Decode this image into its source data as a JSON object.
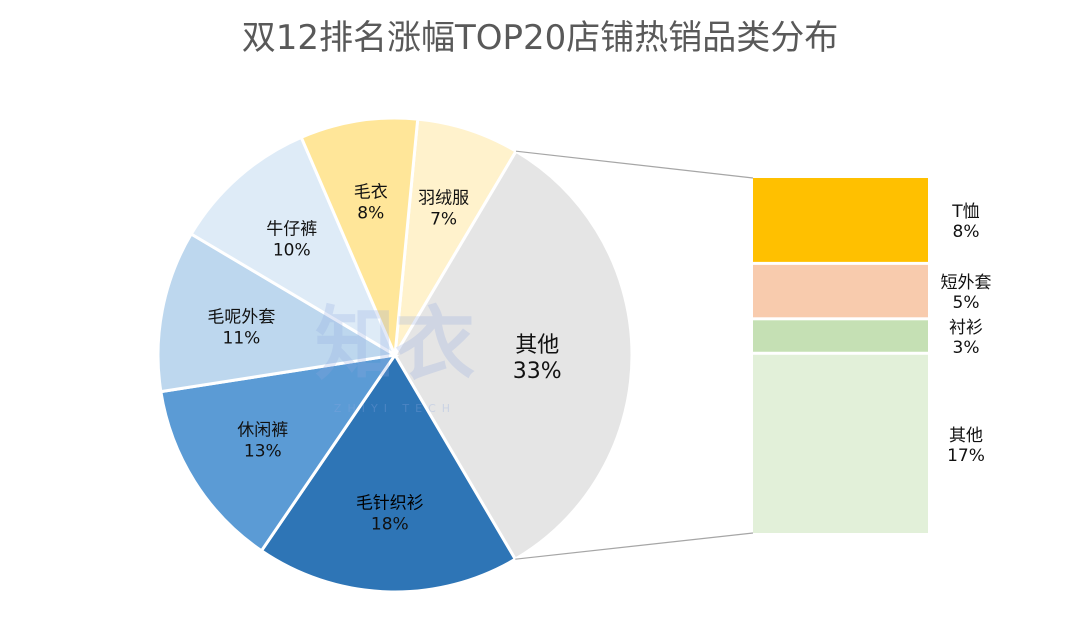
{
  "chart_data": {
    "type": "pie-of-bar",
    "title": "双12排名涨幅TOP20店铺热销品类分布",
    "pie": {
      "slices": [
        {
          "label": "羽绒服",
          "value": 7,
          "display": "7%",
          "color": "#FFF2CC"
        },
        {
          "label": "其他",
          "value": 33,
          "display": "33%",
          "color": "#E5E5E5"
        },
        {
          "label": "毛针织衫",
          "value": 18,
          "display": "18%",
          "color": "#2E75B6"
        },
        {
          "label": "休闲裤",
          "value": 13,
          "display": "13%",
          "color": "#5B9BD5"
        },
        {
          "label": "毛呢外套",
          "value": 11,
          "display": "11%",
          "color": "#BDD7EE"
        },
        {
          "label": "牛仔裤",
          "value": 10,
          "display": "10%",
          "color": "#DEEBF7"
        },
        {
          "label": "毛衣",
          "value": 8,
          "display": "8%",
          "color": "#FFE699"
        }
      ]
    },
    "bar": {
      "breakdown_of": "其他",
      "segments": [
        {
          "label": "T恤",
          "value": 8,
          "display": "8%",
          "color": "#FFC000"
        },
        {
          "label": "短外套",
          "value": 5,
          "display": "5%",
          "color": "#F8CBAD"
        },
        {
          "label": "衬衫",
          "value": 3,
          "display": "3%",
          "color": "#C5E0B4"
        },
        {
          "label": "其他",
          "value": 17,
          "display": "17%",
          "color": "#E2F0D9"
        }
      ]
    }
  },
  "watermark": {
    "main": "知衣",
    "sub": "ZHIYI TECH"
  }
}
